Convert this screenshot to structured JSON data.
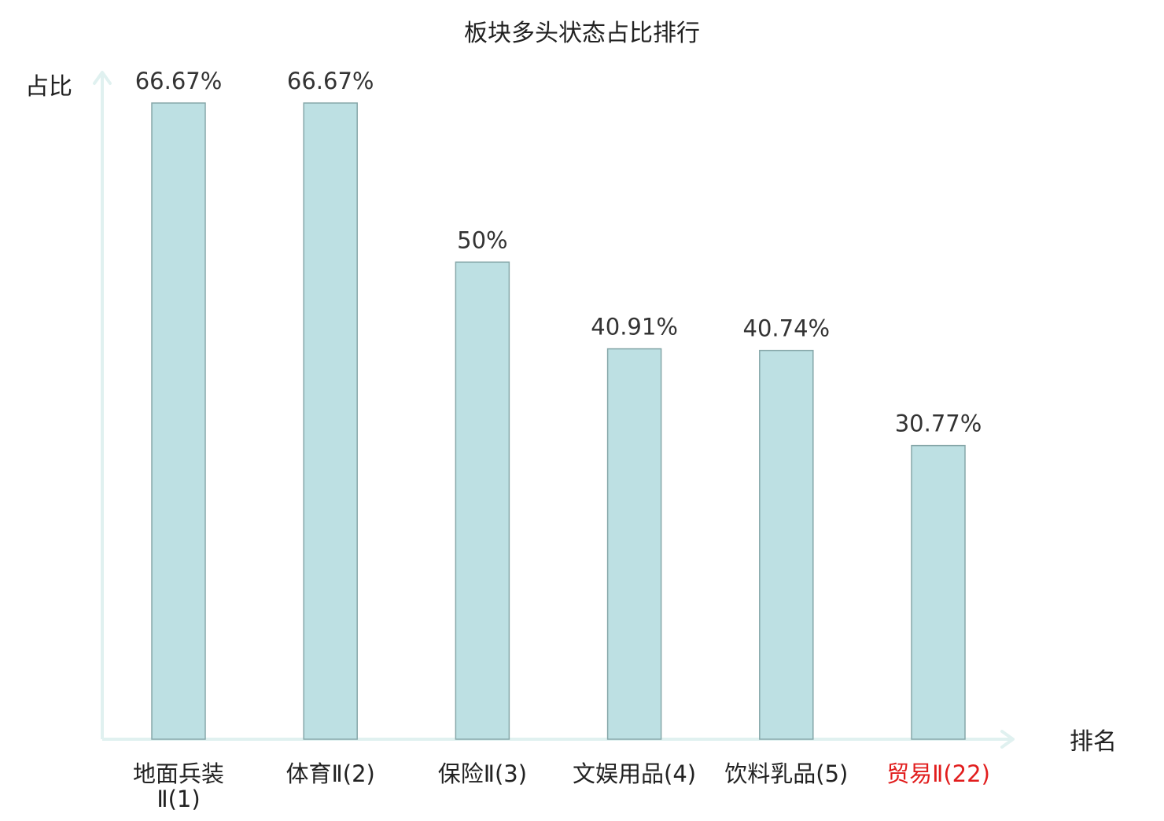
{
  "chart_data": {
    "type": "bar",
    "title": "板块多头状态占比排行",
    "ylabel": "占比",
    "xlabel": "排名",
    "categories": [
      "地面兵装Ⅱ(1)",
      "体育Ⅱ(2)",
      "保险Ⅱ(3)",
      "文娱用品(4)",
      "饮料乳品(5)",
      "贸易Ⅱ(22)"
    ],
    "category_lines": [
      [
        "地面兵装",
        "Ⅱ(1)"
      ],
      [
        "体育Ⅱ(2)"
      ],
      [
        "保险Ⅱ(3)"
      ],
      [
        "文娱用品(4)"
      ],
      [
        "饮料乳品(5)"
      ],
      [
        "贸易Ⅱ(22)"
      ]
    ],
    "values": [
      66.67,
      66.67,
      50,
      40.91,
      40.74,
      30.77
    ],
    "value_labels": [
      "66.67%",
      "66.67%",
      "50%",
      "40.91%",
      "40.74%",
      "30.77%"
    ],
    "highlighted_category_index": 5,
    "ylim": [
      0,
      70
    ],
    "grid": false,
    "colors": {
      "bar_fill": "#bde0e3",
      "bar_stroke": "#86a7a9",
      "axis": "#e0f1f0",
      "text": "#333333",
      "highlight_text": "#e11d1d"
    }
  }
}
